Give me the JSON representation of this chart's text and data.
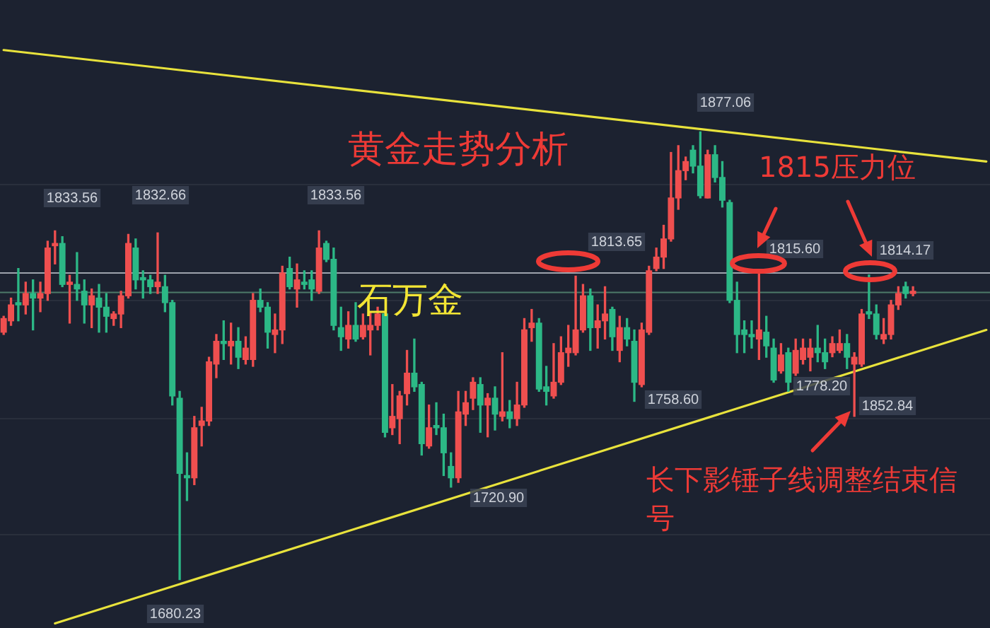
{
  "chart_data": {
    "type": "candlestick",
    "title": "黄金走势分析",
    "categories": [
      null,
      null,
      null,
      null,
      null,
      null,
      null,
      null,
      null,
      null,
      null,
      null,
      null,
      null,
      null,
      null,
      null,
      null,
      null,
      null,
      null,
      null,
      null,
      null,
      null,
      null,
      null,
      null,
      null,
      null,
      null,
      null,
      null,
      null,
      null,
      null,
      null,
      null,
      null,
      null,
      null,
      null,
      null,
      null,
      null,
      null,
      null,
      null,
      null,
      null,
      null,
      null,
      null,
      null,
      null,
      null,
      null,
      null,
      null,
      null,
      null,
      null,
      null,
      null,
      null,
      null,
      null,
      null,
      null,
      null,
      null,
      null,
      null,
      null,
      null,
      null,
      null,
      null,
      null,
      null,
      null,
      null,
      null,
      null,
      null,
      null,
      null,
      null,
      null,
      null,
      null,
      null,
      null,
      null,
      null,
      null,
      null,
      null,
      null,
      null,
      null,
      null,
      null,
      null,
      null,
      null,
      null,
      null,
      null,
      null,
      null,
      null,
      null,
      null,
      null,
      null,
      null,
      null,
      null,
      null,
      null,
      null,
      null,
      null,
      null,
      null,
      null,
      null,
      null,
      null,
      null,
      null,
      null,
      null,
      null
    ],
    "ohlc": [
      [
        1789,
        1796,
        1788,
        1795
      ],
      [
        1794,
        1804,
        1792,
        1801
      ],
      [
        1802,
        1817,
        1794,
        1801
      ],
      [
        1801,
        1811,
        1797,
        1806
      ],
      [
        1806,
        1812,
        1790,
        1804
      ],
      [
        1804,
        1811,
        1798,
        1806
      ],
      [
        1806,
        1829,
        1803,
        1826
      ],
      [
        1827,
        1833.56,
        1819,
        1828
      ],
      [
        1828,
        1831,
        1809,
        1810
      ],
      [
        1810,
        1814,
        1793,
        1811
      ],
      [
        1810,
        1824,
        1803,
        1808
      ],
      [
        1807,
        1812,
        1793,
        1801
      ],
      [
        1801,
        1808,
        1791,
        1805
      ],
      [
        1804,
        1810,
        1789,
        1800
      ],
      [
        1800,
        1806,
        1789,
        1796
      ],
      [
        1795,
        1798,
        1792,
        1797
      ],
      [
        1797,
        1807,
        1791,
        1805
      ],
      [
        1805,
        1832,
        1804,
        1828
      ],
      [
        1826,
        1830,
        1808,
        1812
      ],
      [
        1813,
        1816,
        1804,
        1812
      ],
      [
        1812,
        1814,
        1806,
        1809
      ],
      [
        1809,
        1832.66,
        1806,
        1811
      ],
      [
        1809,
        1814,
        1798,
        1802
      ],
      [
        1802,
        1803,
        1757,
        1761
      ],
      [
        1760,
        1763,
        1680.23,
        1727
      ],
      [
        1726,
        1736,
        1715,
        1725
      ],
      [
        1725,
        1752,
        1722,
        1747
      ],
      [
        1748,
        1756,
        1739,
        1750
      ],
      [
        1750,
        1778,
        1748,
        1776
      ],
      [
        1775,
        1788,
        1769,
        1785
      ],
      [
        1785,
        1794,
        1777,
        1784
      ],
      [
        1783,
        1793,
        1775,
        1785
      ],
      [
        1785,
        1791,
        1773,
        1778
      ],
      [
        1777,
        1787,
        1775,
        1782
      ],
      [
        1777,
        1806,
        1774,
        1803
      ],
      [
        1803,
        1808,
        1798,
        1800
      ],
      [
        1800,
        1802,
        1782,
        1789
      ],
      [
        1788,
        1797,
        1780,
        1790
      ],
      [
        1790,
        1818,
        1784,
        1815
      ],
      [
        1817,
        1822,
        1808,
        1809
      ],
      [
        1808,
        1819,
        1800,
        1812
      ],
      [
        1811,
        1816,
        1808,
        1810
      ],
      [
        1812,
        1816,
        1803,
        1808
      ],
      [
        1807,
        1833.56,
        1806,
        1826
      ],
      [
        1828,
        1829,
        1820,
        1821
      ],
      [
        1821,
        1826,
        1790,
        1792
      ],
      [
        1791,
        1800,
        1781,
        1787
      ],
      [
        1786,
        1798,
        1782,
        1792
      ],
      [
        1792,
        1802,
        1785,
        1786
      ],
      [
        1787,
        1797,
        1786,
        1792
      ],
      [
        1790,
        1798,
        1779,
        1792
      ],
      [
        1792,
        1800,
        1790,
        1797
      ],
      [
        1797,
        1798,
        1743,
        1745
      ],
      [
        1747,
        1766,
        1744,
        1752
      ],
      [
        1751,
        1763,
        1740,
        1761
      ],
      [
        1762,
        1781,
        1757,
        1771
      ],
      [
        1771,
        1786,
        1763,
        1765
      ],
      [
        1766,
        1767,
        1735,
        1740
      ],
      [
        1739,
        1757,
        1738,
        1747
      ],
      [
        1748,
        1758,
        1744,
        1747
      ],
      [
        1747,
        1753,
        1726,
        1736
      ],
      [
        1730,
        1736,
        1720.9,
        1725
      ],
      [
        1725,
        1763,
        1723,
        1754
      ],
      [
        1753,
        1763,
        1748,
        1758
      ],
      [
        1760,
        1769,
        1755,
        1767
      ],
      [
        1766,
        1769,
        1745,
        1757
      ],
      [
        1757,
        1762,
        1743,
        1760
      ],
      [
        1760,
        1765,
        1746,
        1753
      ],
      [
        1752,
        1780,
        1750,
        1754
      ],
      [
        1754,
        1759,
        1747,
        1751
      ],
      [
        1751,
        1767,
        1748,
        1757
      ],
      [
        1757,
        1795,
        1756,
        1790
      ],
      [
        1791,
        1799,
        1785,
        1793
      ],
      [
        1793,
        1795,
        1763,
        1764
      ],
      [
        1765,
        1774,
        1757,
        1763
      ],
      [
        1761,
        1784,
        1760,
        1767
      ],
      [
        1767,
        1787,
        1766,
        1780
      ],
      [
        1780,
        1792,
        1774,
        1782
      ],
      [
        1780,
        1813.65,
        1779,
        1790
      ],
      [
        1790,
        1810,
        1789,
        1805
      ],
      [
        1805,
        1808,
        1781,
        1791
      ],
      [
        1791,
        1801,
        1782,
        1794
      ],
      [
        1794,
        1809,
        1786,
        1797
      ],
      [
        1799,
        1800,
        1781,
        1787
      ],
      [
        1781,
        1796,
        1776,
        1791
      ],
      [
        1791,
        1795,
        1783,
        1786
      ],
      [
        1785,
        1790,
        1758.6,
        1767
      ],
      [
        1766,
        1793,
        1765,
        1790
      ],
      [
        1789,
        1818,
        1788,
        1816
      ],
      [
        1817,
        1826,
        1816,
        1822
      ],
      [
        1822,
        1836,
        1817,
        1830
      ],
      [
        1830,
        1868,
        1829,
        1848
      ],
      [
        1848,
        1871,
        1843,
        1860
      ],
      [
        1860,
        1866,
        1856,
        1864
      ],
      [
        1869,
        1871,
        1859,
        1862
      ],
      [
        1862,
        1877.06,
        1848,
        1849
      ],
      [
        1848,
        1869,
        1848,
        1867
      ],
      [
        1867,
        1871,
        1855,
        1857
      ],
      [
        1857,
        1864,
        1844,
        1847
      ],
      [
        1846,
        1847,
        1802,
        1803
      ],
      [
        1803,
        1811,
        1780,
        1788
      ],
      [
        1790,
        1794,
        1780,
        1788
      ],
      [
        1788,
        1794,
        1782,
        1787
      ],
      [
        1786,
        1815.6,
        1777,
        1790
      ],
      [
        1789,
        1796,
        1778,
        1783
      ],
      [
        1782,
        1786,
        1767,
        1768
      ],
      [
        1772,
        1784,
        1771,
        1779
      ],
      [
        1780,
        1782,
        1763,
        1767
      ],
      [
        1771,
        1786,
        1770,
        1781
      ],
      [
        1777,
        1786,
        1775,
        1782
      ],
      [
        1778,
        1786,
        1772,
        1782
      ],
      [
        1782,
        1792,
        1776,
        1780
      ],
      [
        1780,
        1786,
        1773,
        1776
      ],
      [
        1780,
        1787,
        1778.2,
        1784
      ],
      [
        1781,
        1790,
        1780,
        1784
      ],
      [
        1784,
        1788,
        1773,
        1778
      ],
      [
        1775,
        1780,
        1752,
        1778
      ],
      [
        1775,
        1799,
        1774,
        1797
      ],
      [
        1798,
        1814.17,
        1795,
        1797
      ],
      [
        1797,
        1801,
        1786,
        1788
      ],
      [
        1786,
        1795,
        1784,
        1788
      ],
      [
        1788,
        1803,
        1786,
        1801
      ],
      [
        1801,
        1809,
        1799,
        1806
      ],
      [
        1809,
        1811,
        1804,
        1806
      ],
      [
        1806,
        1809,
        1805,
        1807
      ],
      null,
      null,
      null,
      null,
      null,
      null,
      null,
      null,
      null,
      null
    ],
    "colors": [
      "#ef4f4f",
      "#ef4f4f",
      "#2cb886",
      "#ef4f4f",
      "#2cb886",
      "#ef4f4f",
      "#ef4f4f",
      "#ef4f4f",
      "#2cb886",
      "#ef4f4f",
      "#2cb886",
      "#2cb886",
      "#ef4f4f",
      "#2cb886",
      "#2cb886",
      "#ef4f4f",
      "#ef4f4f",
      "#ef4f4f",
      "#2cb886",
      "#2cb886",
      "#2cb886",
      "#ef4f4f",
      "#2cb886",
      "#2cb886",
      "#2cb886",
      "#2cb886",
      "#ef4f4f",
      "#ef4f4f",
      "#ef4f4f",
      "#ef4f4f",
      "#2cb886",
      "#ef4f4f",
      "#2cb886",
      "#ef4f4f",
      "#ef4f4f",
      "#2cb886",
      "#2cb886",
      "#ef4f4f",
      "#ef4f4f",
      "#2cb886",
      "#ef4f4f",
      "#2cb886",
      "#2cb886",
      "#ef4f4f",
      "#2cb886",
      "#2cb886",
      "#2cb886",
      "#ef4f4f",
      "#2cb886",
      "#ef4f4f",
      "#ef4f4f",
      "#ef4f4f",
      "#2cb886",
      "#ef4f4f",
      "#ef4f4f",
      "#ef4f4f",
      "#2cb886",
      "#2cb886",
      "#ef4f4f",
      "#2cb886",
      "#2cb886",
      "#2cb886",
      "#ef4f4f",
      "#ef4f4f",
      "#ef4f4f",
      "#2cb886",
      "#ef4f4f",
      "#2cb886",
      "#ef4f4f",
      "#2cb886",
      "#ef4f4f",
      "#ef4f4f",
      "#ef4f4f",
      "#2cb886",
      "#2cb886",
      "#ef4f4f",
      "#ef4f4f",
      "#ef4f4f",
      "#ef4f4f",
      "#ef4f4f",
      "#2cb886",
      "#ef4f4f",
      "#ef4f4f",
      "#2cb886",
      "#ef4f4f",
      "#2cb886",
      "#2cb886",
      "#ef4f4f",
      "#ef4f4f",
      "#ef4f4f",
      "#ef4f4f",
      "#ef4f4f",
      "#ef4f4f",
      "#ef4f4f",
      "#2cb886",
      "#2cb886",
      "#ef4f4f",
      "#2cb886",
      "#2cb886",
      "#2cb886",
      "#2cb886",
      "#2cb886",
      "#2cb886",
      "#ef4f4f",
      "#2cb886",
      "#2cb886",
      "#ef4f4f",
      "#2cb886",
      "#ef4f4f",
      "#ef4f4f",
      "#ef4f4f",
      "#2cb886",
      "#2cb886",
      "#ef4f4f",
      "#ef4f4f",
      "#2cb886",
      "#ef4f4f",
      "#ef4f4f",
      "#2cb886",
      "#2cb886",
      "#ef4f4f",
      "#ef4f4f",
      "#ef4f4f",
      "#2cb886",
      "#ef4f4f",
      null,
      null,
      null,
      null,
      null,
      null,
      null,
      null,
      null,
      null
    ],
    "series": [
      {
        "type": "line",
        "color": "#e8e23c",
        "values": [
          1913,
          null,
          null,
          null,
          null,
          null,
          null,
          null,
          null,
          null,
          null,
          null,
          null,
          null,
          null,
          null,
          null,
          null,
          null,
          null,
          null,
          null,
          null,
          null,
          null,
          null,
          null,
          null,
          null,
          null,
          null,
          null,
          null,
          null,
          null,
          null,
          null,
          null,
          null,
          null,
          null,
          null,
          null,
          null,
          null,
          null,
          null,
          null,
          null,
          null,
          null,
          null,
          null,
          null,
          null,
          null,
          null,
          null,
          null,
          null,
          null,
          null,
          null,
          null,
          null,
          null,
          null,
          null,
          null,
          null,
          null,
          null,
          null,
          null,
          null,
          null,
          null,
          null,
          null,
          null,
          null,
          null,
          null,
          null,
          null,
          null,
          null,
          null,
          null,
          null,
          null,
          null,
          null,
          null,
          null,
          null,
          null,
          null,
          null,
          null,
          null,
          null,
          null,
          null,
          null,
          null,
          null,
          null,
          null,
          null,
          null,
          null,
          null,
          null,
          null,
          null,
          null,
          null,
          null,
          null,
          null,
          null,
          null,
          null,
          null,
          null,
          null,
          null,
          null,
          null,
          null,
          null,
          null,
          null,
          1864
        ]
      },
      {
        "type": "line",
        "color": "#e8e23c",
        "values": [
          null,
          null,
          null,
          null,
          null,
          null,
          null,
          1661,
          null,
          null,
          null,
          null,
          null,
          null,
          null,
          null,
          null,
          null,
          null,
          null,
          null,
          null,
          null,
          null,
          null,
          null,
          null,
          null,
          null,
          null,
          null,
          null,
          null,
          null,
          null,
          null,
          null,
          null,
          null,
          null,
          null,
          null,
          null,
          null,
          null,
          null,
          null,
          null,
          null,
          null,
          null,
          null,
          null,
          null,
          null,
          null,
          null,
          null,
          null,
          null,
          null,
          null,
          null,
          null,
          null,
          null,
          null,
          null,
          null,
          null,
          null,
          null,
          null,
          null,
          null,
          null,
          null,
          null,
          null,
          null,
          null,
          null,
          null,
          null,
          null,
          null,
          null,
          null,
          null,
          null,
          null,
          null,
          null,
          null,
          null,
          null,
          null,
          null,
          null,
          null,
          null,
          null,
          null,
          null,
          null,
          null,
          null,
          null,
          null,
          null,
          null,
          null,
          null,
          null,
          null,
          null,
          null,
          null,
          null,
          null,
          null,
          null,
          null,
          null,
          null,
          null,
          null,
          null,
          null,
          null,
          null,
          null,
          null,
          null,
          1790
        ]
      }
    ],
    "ref_lines": [
      {
        "axis": "y",
        "value": 1815,
        "color": "#9ea3ad"
      },
      {
        "axis": "y",
        "value": 1806.5,
        "color": "#4d7a69"
      }
    ],
    "annotations": [
      "1833.56",
      "1832.66",
      "1833.56",
      "1680.23",
      "1720.90",
      "1813.65",
      "1758.60",
      "1877.06",
      "1815.60",
      "1778.20",
      "1814.17",
      "1815压力位",
      "石万金",
      "长下影锤子线调整结束信号",
      "1852.84"
    ],
    "ylim": [
      1659,
      1935
    ],
    "yticks": [
      {
        "value": 1700,
        "label": null
      },
      {
        "value": 1751,
        "label": null
      },
      {
        "value": 1803,
        "label": null
      },
      {
        "value": 1854,
        "label": null
      }
    ],
    "grid": "y",
    "tick_labels": false
  }
}
